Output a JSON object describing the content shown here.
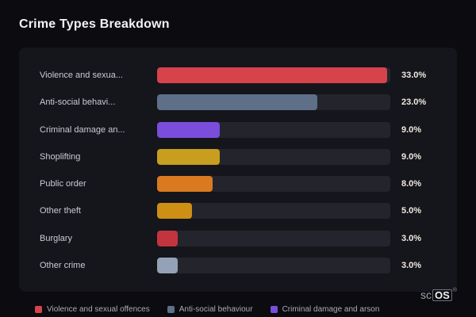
{
  "page": {
    "title": "Crime Types Breakdown"
  },
  "brand": {
    "prefix": "sc",
    "boxed": "OS",
    "reg": "®"
  },
  "chart_data": {
    "type": "bar",
    "orientation": "horizontal",
    "title": "Crime Types Breakdown",
    "xlim": [
      0,
      33.5
    ],
    "grid": false,
    "legend_position": "bottom",
    "categories": [
      "Violence and sexual offences",
      "Anti-social behaviour",
      "Criminal damage and arson",
      "Shoplifting",
      "Public order",
      "Other theft",
      "Burglary",
      "Other crime"
    ],
    "display_labels": [
      "Violence and sexua...",
      "Anti-social behavi...",
      "Criminal damage an...",
      "Shoplifting",
      "Public order",
      "Other theft",
      "Burglary",
      "Other crime"
    ],
    "values": [
      33.0,
      23.0,
      9.0,
      9.0,
      8.0,
      5.0,
      3.0,
      3.0
    ],
    "value_labels": [
      "33.0%",
      "23.0%",
      "9.0%",
      "9.0%",
      "8.0%",
      "5.0%",
      "3.0%",
      "3.0%"
    ],
    "bar_colors": [
      "#d6434b",
      "#5e7088",
      "#7a4ddb",
      "#c79e1d",
      "#d97a20",
      "#cd8f14",
      "#c2353e",
      "#93a2b6"
    ],
    "track_color": "#24242d",
    "legend": [
      {
        "label": "Violence and sexual offences",
        "color": "#d6434b"
      },
      {
        "label": "Anti-social behaviour",
        "color": "#5e7088"
      },
      {
        "label": "Criminal damage and arson",
        "color": "#7a4ddb"
      }
    ]
  }
}
